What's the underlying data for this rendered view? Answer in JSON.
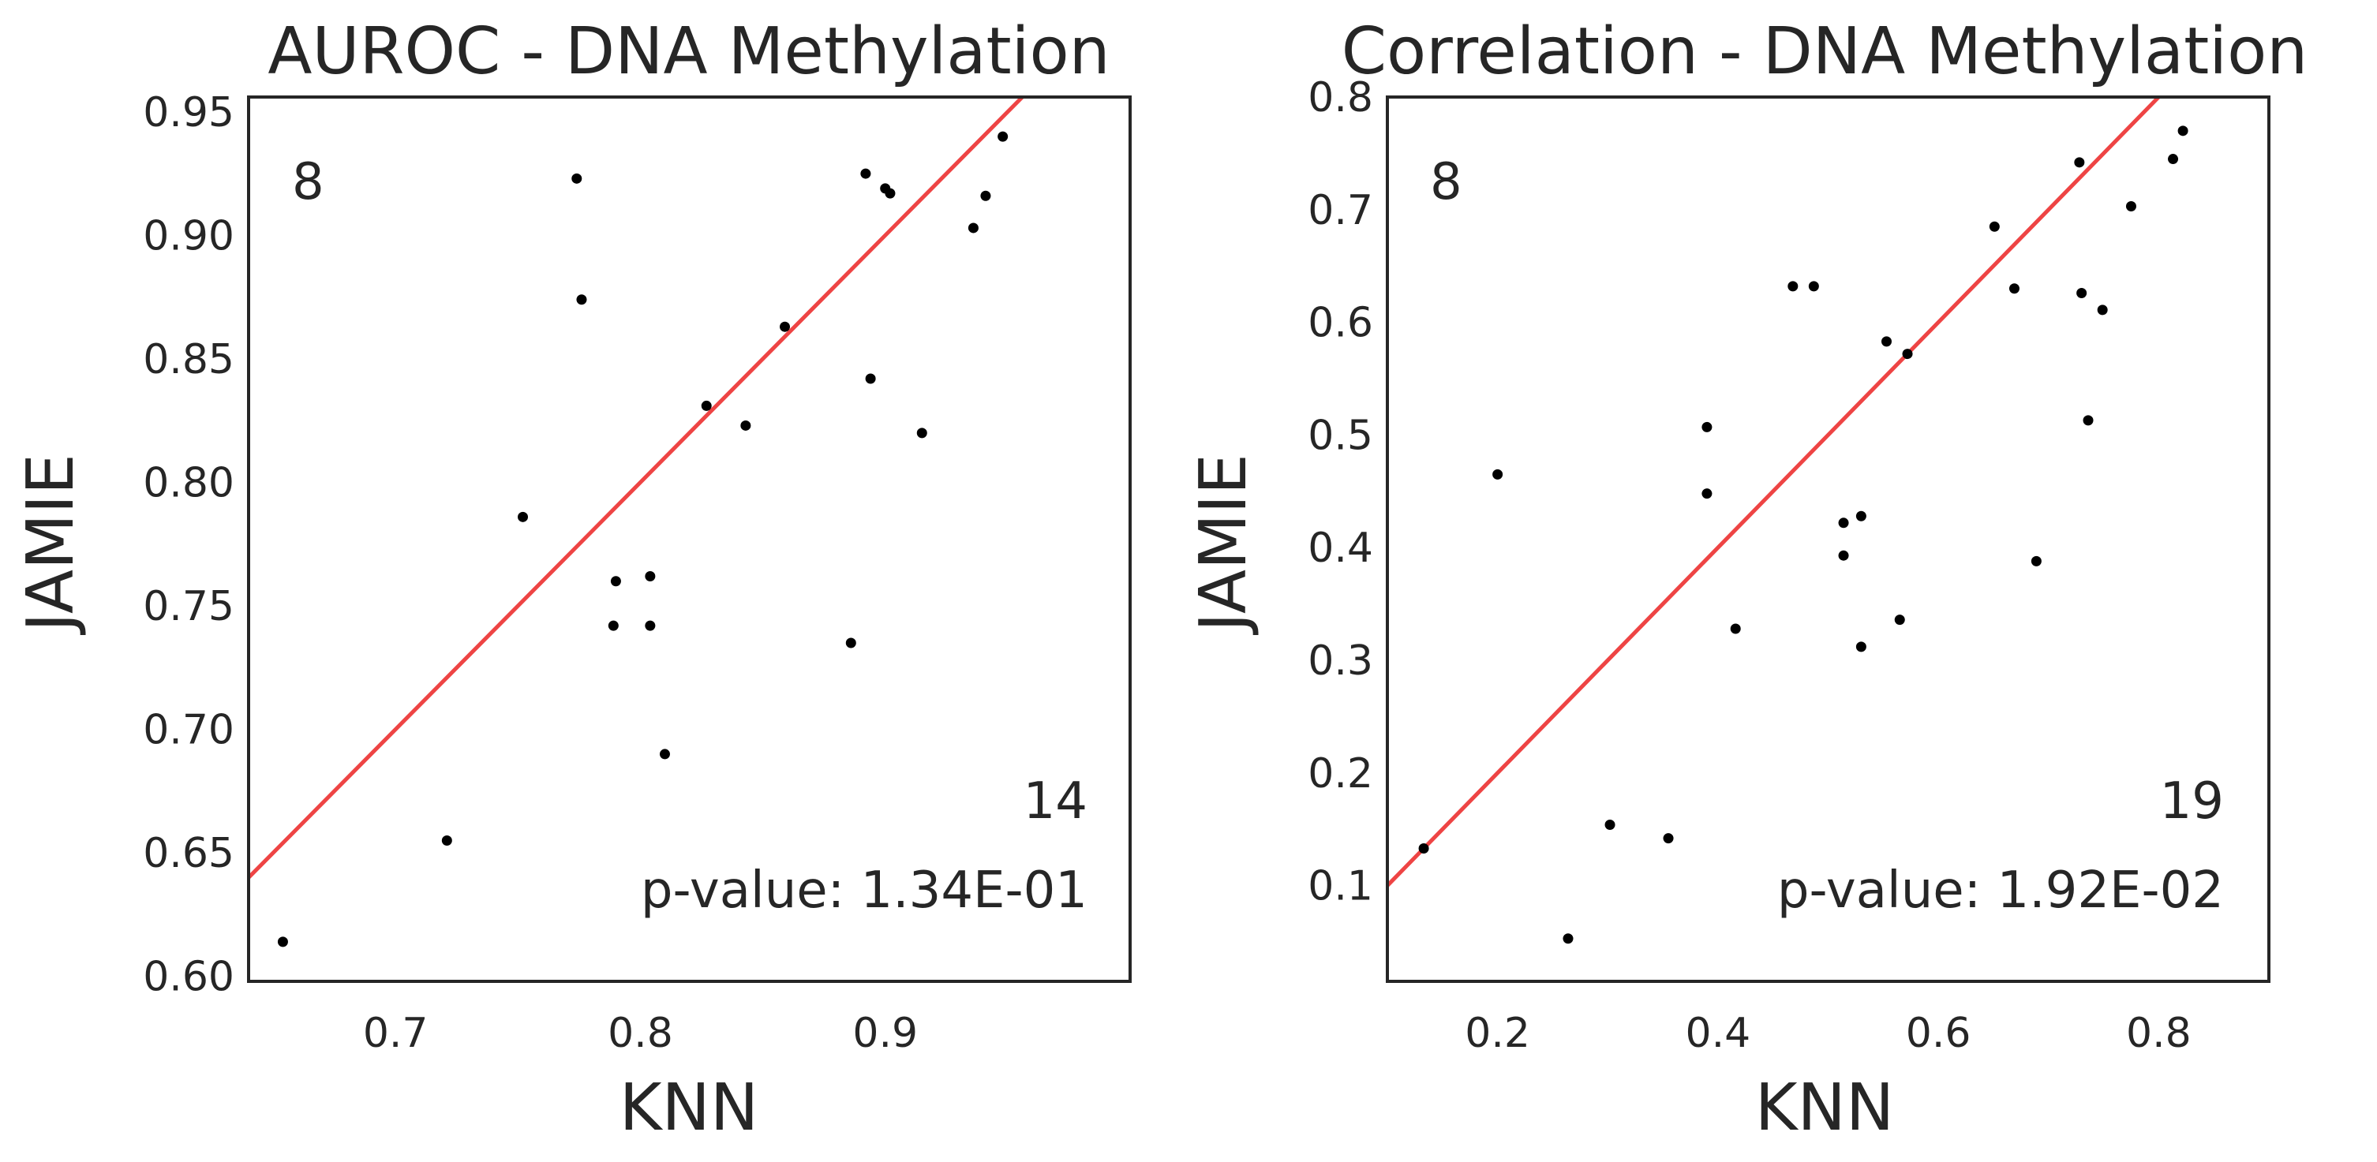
{
  "chart_data": [
    {
      "type": "scatter",
      "title": "AUROC - DNA Methylation",
      "xlabel": "KNN",
      "ylabel": "JAMIE",
      "xlim": [
        0.64,
        1.0
      ],
      "ylim": [
        0.598,
        0.956
      ],
      "xticks": [
        0.7,
        0.8,
        0.9
      ],
      "xtick_labels": [
        "0.7",
        "0.8",
        "0.9"
      ],
      "yticks": [
        0.6,
        0.65,
        0.7,
        0.75,
        0.8,
        0.85,
        0.9,
        0.95
      ],
      "ytick_labels": [
        "0.60",
        "0.65",
        "0.70",
        "0.75",
        "0.80",
        "0.85",
        "0.90",
        "0.95"
      ],
      "grid": false,
      "reference_line": "y = x",
      "count_above": "8",
      "count_below": "14",
      "pvalue_text": "p-value: 1.34E-01",
      "points": [
        [
          0.654,
          0.614
        ],
        [
          0.721,
          0.655
        ],
        [
          0.752,
          0.786
        ],
        [
          0.774,
          0.923
        ],
        [
          0.776,
          0.874
        ],
        [
          0.79,
          0.76
        ],
        [
          0.789,
          0.742
        ],
        [
          0.804,
          0.762
        ],
        [
          0.804,
          0.742
        ],
        [
          0.81,
          0.69
        ],
        [
          0.827,
          0.831
        ],
        [
          0.843,
          0.823
        ],
        [
          0.859,
          0.863
        ],
        [
          0.886,
          0.735
        ],
        [
          0.892,
          0.925
        ],
        [
          0.894,
          0.842
        ],
        [
          0.9,
          0.919
        ],
        [
          0.902,
          0.917
        ],
        [
          0.915,
          0.82
        ],
        [
          0.936,
          0.903
        ],
        [
          0.941,
          0.916
        ],
        [
          0.948,
          0.94
        ]
      ]
    },
    {
      "type": "scatter",
      "title": "Correlation - DNA Methylation",
      "xlabel": "KNN",
      "ylabel": "JAMIE",
      "xlim": [
        0.1,
        0.9
      ],
      "ylim": [
        0.015,
        0.8
      ],
      "xticks": [
        0.2,
        0.4,
        0.6,
        0.8
      ],
      "xtick_labels": [
        "0.2",
        "0.4",
        "0.6",
        "0.8"
      ],
      "yticks": [
        0.1,
        0.2,
        0.3,
        0.4,
        0.5,
        0.6,
        0.7,
        0.8
      ],
      "ytick_labels": [
        "0.1",
        "0.2",
        "0.3",
        "0.4",
        "0.5",
        "0.6",
        "0.7",
        "0.8"
      ],
      "grid": false,
      "reference_line": "y = x",
      "count_above": "8",
      "count_below": "19",
      "pvalue_text": "p-value: 1.92E-02",
      "points": [
        [
          0.133,
          0.133
        ],
        [
          0.2,
          0.465
        ],
        [
          0.264,
          0.053
        ],
        [
          0.302,
          0.154
        ],
        [
          0.355,
          0.142
        ],
        [
          0.39,
          0.507
        ],
        [
          0.39,
          0.448
        ],
        [
          0.416,
          0.328
        ],
        [
          0.468,
          0.632
        ],
        [
          0.487,
          0.632
        ],
        [
          0.514,
          0.422
        ],
        [
          0.514,
          0.393
        ],
        [
          0.53,
          0.428
        ],
        [
          0.53,
          0.312
        ],
        [
          0.553,
          0.583
        ],
        [
          0.565,
          0.336
        ],
        [
          0.572,
          0.572
        ],
        [
          0.651,
          0.685
        ],
        [
          0.669,
          0.63
        ],
        [
          0.689,
          0.388
        ],
        [
          0.728,
          0.742
        ],
        [
          0.73,
          0.626
        ],
        [
          0.736,
          0.513
        ],
        [
          0.749,
          0.611
        ],
        [
          0.775,
          0.703
        ],
        [
          0.813,
          0.745
        ],
        [
          0.822,
          0.77
        ]
      ]
    }
  ]
}
